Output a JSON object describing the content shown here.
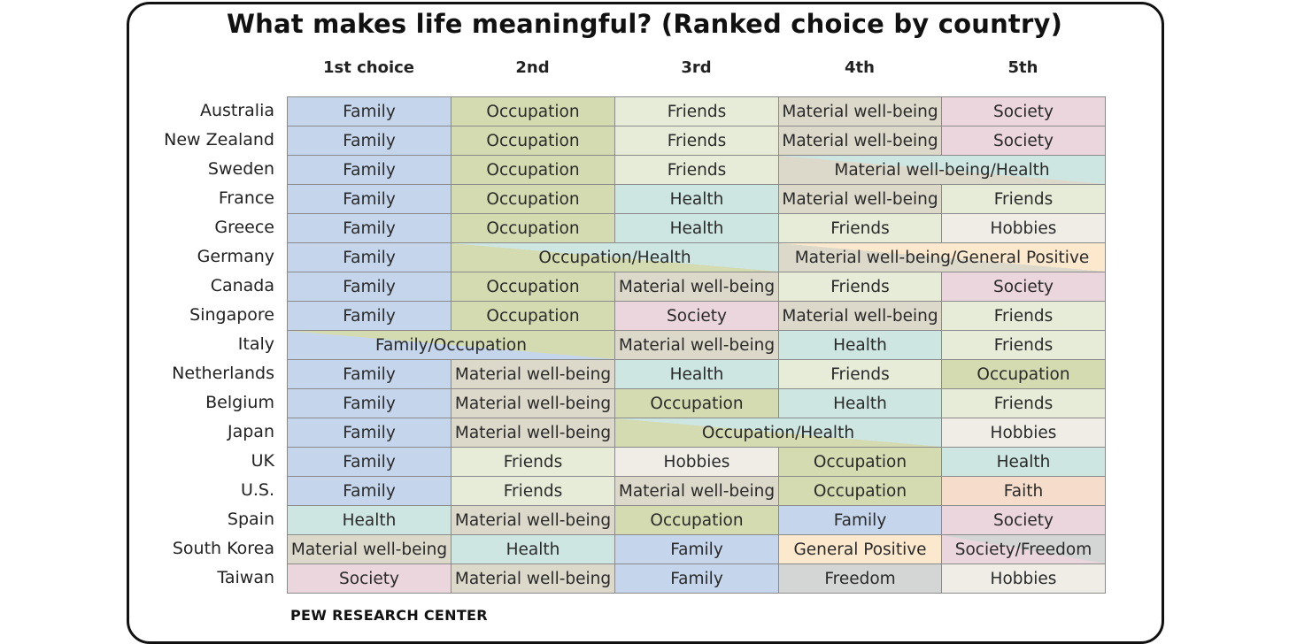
{
  "title": "What makes life meaningful? (Ranked choice by country)",
  "footer": "PEW RESEARCH CENTER",
  "colors": {
    "Family": "#c5d6ec",
    "Occupation": "#d5dbb1",
    "Friends": "#e6ecd8",
    "Material well-being": "#dcd9ca",
    "Society": "#ead6dc",
    "Health": "#cde6e2",
    "Hobbies": "#efede6",
    "General Positive": "#fbe8cd",
    "Freedom": "#d4d5d5",
    "Faith": "#f5dccb"
  },
  "chart_data": {
    "type": "table",
    "title": "What makes life meaningful? (Ranked choice by country)",
    "columns": [
      "1st choice",
      "2nd",
      "3rd",
      "4th",
      "5th"
    ],
    "rows": [
      {
        "country": "Australia",
        "cells": [
          {
            "text": "Family",
            "span": 1
          },
          {
            "text": "Occupation",
            "span": 1
          },
          {
            "text": "Friends",
            "span": 1
          },
          {
            "text": "Material well-being",
            "span": 1
          },
          {
            "text": "Society",
            "span": 1
          }
        ]
      },
      {
        "country": "New Zealand",
        "cells": [
          {
            "text": "Family",
            "span": 1
          },
          {
            "text": "Occupation",
            "span": 1
          },
          {
            "text": "Friends",
            "span": 1
          },
          {
            "text": "Material well-being",
            "span": 1
          },
          {
            "text": "Society",
            "span": 1
          }
        ]
      },
      {
        "country": "Sweden",
        "cells": [
          {
            "text": "Family",
            "span": 1
          },
          {
            "text": "Occupation",
            "span": 1
          },
          {
            "text": "Friends",
            "span": 1
          },
          {
            "text": "Material well-being/Health",
            "span": 2
          }
        ]
      },
      {
        "country": "France",
        "cells": [
          {
            "text": "Family",
            "span": 1
          },
          {
            "text": "Occupation",
            "span": 1
          },
          {
            "text": "Health",
            "span": 1
          },
          {
            "text": "Material well-being",
            "span": 1
          },
          {
            "text": "Friends",
            "span": 1
          }
        ]
      },
      {
        "country": "Greece",
        "cells": [
          {
            "text": "Family",
            "span": 1
          },
          {
            "text": "Occupation",
            "span": 1
          },
          {
            "text": "Health",
            "span": 1
          },
          {
            "text": "Friends",
            "span": 1
          },
          {
            "text": "Hobbies",
            "span": 1
          }
        ]
      },
      {
        "country": "Germany",
        "cells": [
          {
            "text": "Family",
            "span": 1
          },
          {
            "text": "Occupation/Health",
            "span": 2
          },
          {
            "text": "Material well-being/General Positive",
            "span": 2
          }
        ]
      },
      {
        "country": "Canada",
        "cells": [
          {
            "text": "Family",
            "span": 1
          },
          {
            "text": "Occupation",
            "span": 1
          },
          {
            "text": "Material well-being",
            "span": 1
          },
          {
            "text": "Friends",
            "span": 1
          },
          {
            "text": "Society",
            "span": 1
          }
        ]
      },
      {
        "country": "Singapore",
        "cells": [
          {
            "text": "Family",
            "span": 1
          },
          {
            "text": "Occupation",
            "span": 1
          },
          {
            "text": "Society",
            "span": 1
          },
          {
            "text": "Material well-being",
            "span": 1
          },
          {
            "text": "Friends",
            "span": 1
          }
        ]
      },
      {
        "country": "Italy",
        "cells": [
          {
            "text": "Family/Occupation",
            "span": 2
          },
          {
            "text": "Material well-being",
            "span": 1
          },
          {
            "text": "Health",
            "span": 1
          },
          {
            "text": "Friends",
            "span": 1
          }
        ]
      },
      {
        "country": "Netherlands",
        "cells": [
          {
            "text": "Family",
            "span": 1
          },
          {
            "text": "Material well-being",
            "span": 1
          },
          {
            "text": "Health",
            "span": 1
          },
          {
            "text": "Friends",
            "span": 1
          },
          {
            "text": "Occupation",
            "span": 1
          }
        ]
      },
      {
        "country": "Belgium",
        "cells": [
          {
            "text": "Family",
            "span": 1
          },
          {
            "text": "Material well-being",
            "span": 1
          },
          {
            "text": "Occupation",
            "span": 1
          },
          {
            "text": "Health",
            "span": 1
          },
          {
            "text": "Friends",
            "span": 1
          }
        ]
      },
      {
        "country": "Japan",
        "cells": [
          {
            "text": "Family",
            "span": 1
          },
          {
            "text": "Material well-being",
            "span": 1
          },
          {
            "text": "Occupation/Health",
            "span": 2
          },
          {
            "text": "Hobbies",
            "span": 1
          }
        ]
      },
      {
        "country": "UK",
        "cells": [
          {
            "text": "Family",
            "span": 1
          },
          {
            "text": "Friends",
            "span": 1
          },
          {
            "text": "Hobbies",
            "span": 1
          },
          {
            "text": "Occupation",
            "span": 1
          },
          {
            "text": "Health",
            "span": 1
          }
        ]
      },
      {
        "country": "U.S.",
        "cells": [
          {
            "text": "Family",
            "span": 1
          },
          {
            "text": "Friends",
            "span": 1
          },
          {
            "text": "Material well-being",
            "span": 1
          },
          {
            "text": "Occupation",
            "span": 1
          },
          {
            "text": "Faith",
            "span": 1
          }
        ]
      },
      {
        "country": "Spain",
        "cells": [
          {
            "text": "Health",
            "span": 1
          },
          {
            "text": "Material well-being",
            "span": 1
          },
          {
            "text": "Occupation",
            "span": 1
          },
          {
            "text": "Family",
            "span": 1
          },
          {
            "text": "Society",
            "span": 1
          }
        ]
      },
      {
        "country": "South Korea",
        "cells": [
          {
            "text": "Material well-being",
            "span": 1
          },
          {
            "text": "Health",
            "span": 1
          },
          {
            "text": "Family",
            "span": 1
          },
          {
            "text": "General Positive",
            "span": 1
          },
          {
            "text": "Society/Freedom",
            "span": 1
          }
        ]
      },
      {
        "country": "Taiwan",
        "cells": [
          {
            "text": "Society",
            "span": 1
          },
          {
            "text": "Material well-being",
            "span": 1
          },
          {
            "text": "Family",
            "span": 1
          },
          {
            "text": "Freedom",
            "span": 1
          },
          {
            "text": "Hobbies",
            "span": 1
          }
        ]
      }
    ]
  }
}
